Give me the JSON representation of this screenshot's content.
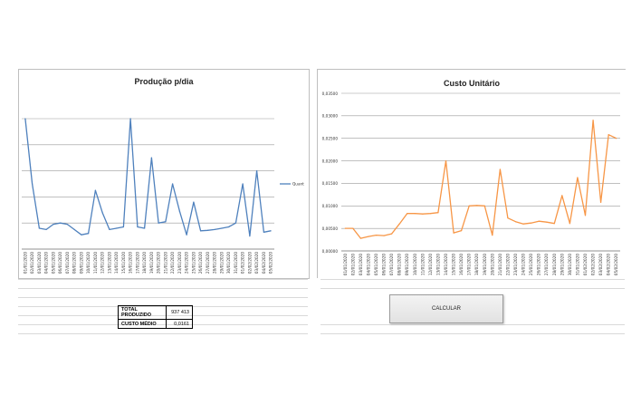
{
  "left_chart": {
    "title": "Produção p/dia",
    "legend": "Quant",
    "line_color": "#4f81bd"
  },
  "right_chart": {
    "title": "Custo Unitário",
    "line_color": "#f79646"
  },
  "summary": {
    "total_label": "TOTAL PRODUZIDO",
    "total_value": "937 413",
    "cost_label": "CUSTO MÉDIO",
    "cost_value": "0,0161"
  },
  "calculate_button_label": "CALCULAR",
  "chart_data": [
    {
      "type": "line",
      "title": "Produção p/dia",
      "categories": [
        "01/01/2020",
        "02/01/2020",
        "03/01/2020",
        "04/01/2020",
        "05/01/2020",
        "06/01/2020",
        "07/01/2020",
        "08/01/2020",
        "09/01/2020",
        "10/01/2020",
        "11/01/2020",
        "12/01/2020",
        "13/01/2020",
        "14/01/2020",
        "15/01/2020",
        "16/01/2020",
        "17/01/2020",
        "18/01/2020",
        "19/01/2020",
        "20/01/2020",
        "21/01/2020",
        "22/01/2020",
        "23/01/2020",
        "24/01/2020",
        "25/01/2020",
        "26/01/2020",
        "27/01/2020",
        "28/01/2020",
        "29/01/2020",
        "30/01/2020",
        "31/01/2020",
        "01/02/2020",
        "02/02/2020",
        "03/02/2020",
        "04/02/2020",
        "05/02/2020"
      ],
      "series": [
        {
          "name": "Quant",
          "values": [
            5.0,
            2.5,
            0.8,
            0.75,
            0.95,
            1.0,
            0.95,
            0.75,
            0.55,
            0.6,
            2.25,
            1.4,
            0.75,
            0.8,
            0.85,
            5.0,
            0.85,
            0.8,
            3.5,
            1.0,
            1.05,
            2.5,
            1.45,
            0.55,
            1.8,
            0.7,
            0.72,
            0.75,
            0.8,
            0.85,
            1.0,
            2.5,
            0.5,
            3.0,
            0.65,
            0.7
          ]
        }
      ],
      "ylim": [
        0,
        5.0
      ],
      "grid": true,
      "legend_position": "right"
    },
    {
      "type": "line",
      "title": "Custo Unitário",
      "categories": [
        "01/01/2020",
        "02/01/2020",
        "03/01/2020",
        "04/01/2020",
        "05/01/2020",
        "06/01/2020",
        "07/01/2020",
        "08/01/2020",
        "09/01/2020",
        "10/01/2020",
        "11/01/2020",
        "12/01/2020",
        "13/01/2020",
        "14/01/2020",
        "15/01/2020",
        "16/01/2020",
        "17/01/2020",
        "18/01/2020",
        "19/01/2020",
        "20/01/2020",
        "21/01/2020",
        "22/01/2020",
        "23/01/2020",
        "24/01/2020",
        "25/01/2020",
        "26/01/2020",
        "27/01/2020",
        "28/01/2020",
        "29/01/2020",
        "30/01/2020",
        "31/01/2020",
        "01/02/2020",
        "02/02/2020",
        "03/02/2020",
        "04/02/2020",
        "05/02/2020"
      ],
      "series": [
        {
          "name": "",
          "values": [
            0.005,
            0.005,
            0.0028,
            0.0032,
            0.0035,
            0.0034,
            0.0038,
            0.006,
            0.0083,
            0.0083,
            0.0082,
            0.0083,
            0.0085,
            0.02,
            0.004,
            0.0045,
            0.01,
            0.0101,
            0.01,
            0.0035,
            0.0181,
            0.0073,
            0.0065,
            0.006,
            0.0062,
            0.0066,
            0.0064,
            0.0061,
            0.0123,
            0.0061,
            0.0163,
            0.0079,
            0.029,
            0.0108,
            0.0258,
            0.025
          ]
        }
      ],
      "yticks": [
        "0,00000",
        "0,00500",
        "0,01000",
        "0,01500",
        "0,02000",
        "0,02500",
        "0,03000",
        "0,03500"
      ],
      "ylim": [
        0,
        0.035
      ],
      "grid": true
    }
  ]
}
